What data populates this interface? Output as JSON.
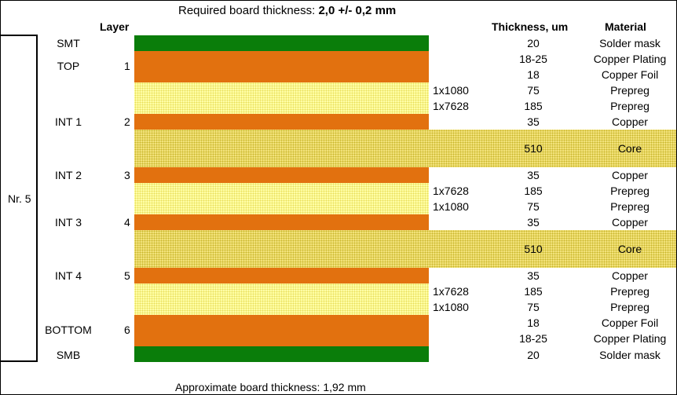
{
  "title": {
    "prefix": "Required board thickness: ",
    "value": "2,0 +/- 0,2 mm"
  },
  "headers": {
    "layer": "Layer",
    "thickness": "Thickness, um",
    "material": "Material"
  },
  "stack_label": "Nr. 5",
  "layer_names": {
    "smt": "SMT",
    "top": "TOP",
    "int1": "INT 1",
    "int2": "INT 2",
    "int3": "INT 3",
    "int4": "INT 4",
    "bottom": "BOTTOM",
    "smb": "SMB"
  },
  "layer_numbers": [
    "1",
    "2",
    "3",
    "4",
    "5",
    "6"
  ],
  "rows": [
    {
      "code": "",
      "thickness": "20",
      "material": "Solder mask"
    },
    {
      "code": "",
      "thickness": "18-25",
      "material": "Copper Plating"
    },
    {
      "code": "",
      "thickness": "18",
      "material": "Copper Foil"
    },
    {
      "code": "1x1080",
      "thickness": "75",
      "material": "Prepreg"
    },
    {
      "code": "1x7628",
      "thickness": "185",
      "material": "Prepreg"
    },
    {
      "code": "",
      "thickness": "35",
      "material": "Copper"
    },
    {
      "code": "",
      "thickness": "510",
      "material": "Core"
    },
    {
      "code": "",
      "thickness": "35",
      "material": "Copper"
    },
    {
      "code": "1x7628",
      "thickness": "185",
      "material": "Prepreg"
    },
    {
      "code": "1x1080",
      "thickness": "75",
      "material": "Prepreg"
    },
    {
      "code": "",
      "thickness": "35",
      "material": "Copper"
    },
    {
      "code": "",
      "thickness": "510",
      "material": "Core"
    },
    {
      "code": "",
      "thickness": "35",
      "material": "Copper"
    },
    {
      "code": "1x7628",
      "thickness": "185",
      "material": "Prepreg"
    },
    {
      "code": "1x1080",
      "thickness": "75",
      "material": "Prepreg"
    },
    {
      "code": "",
      "thickness": "18",
      "material": "Copper Foil"
    },
    {
      "code": "",
      "thickness": "18-25",
      "material": "Copper Plating"
    },
    {
      "code": "",
      "thickness": "20",
      "material": "Solder mask"
    }
  ],
  "footer": "Approximate board thickness: 1,92 mm",
  "colors": {
    "solder_mask": "#0a7d0a",
    "copper": "#e2710f",
    "prepreg": "#ffffa6",
    "core": "#f2e27a"
  }
}
